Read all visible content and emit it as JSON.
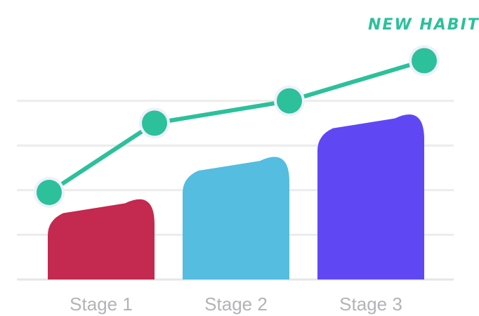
{
  "chart_data": {
    "type": "bar",
    "categories": [
      "Stage 1",
      "Stage 2",
      "Stage 3"
    ],
    "values": [
      36,
      55,
      74
    ],
    "ylim": [
      0,
      100
    ],
    "grid": true,
    "colors": [
      "#c4294f",
      "#54bde0",
      "#5f48f4"
    ],
    "trend_line": {
      "values": [
        39,
        70,
        80,
        98
      ],
      "color": "#2cc09b"
    },
    "annotation": "NEW HABIT"
  }
}
